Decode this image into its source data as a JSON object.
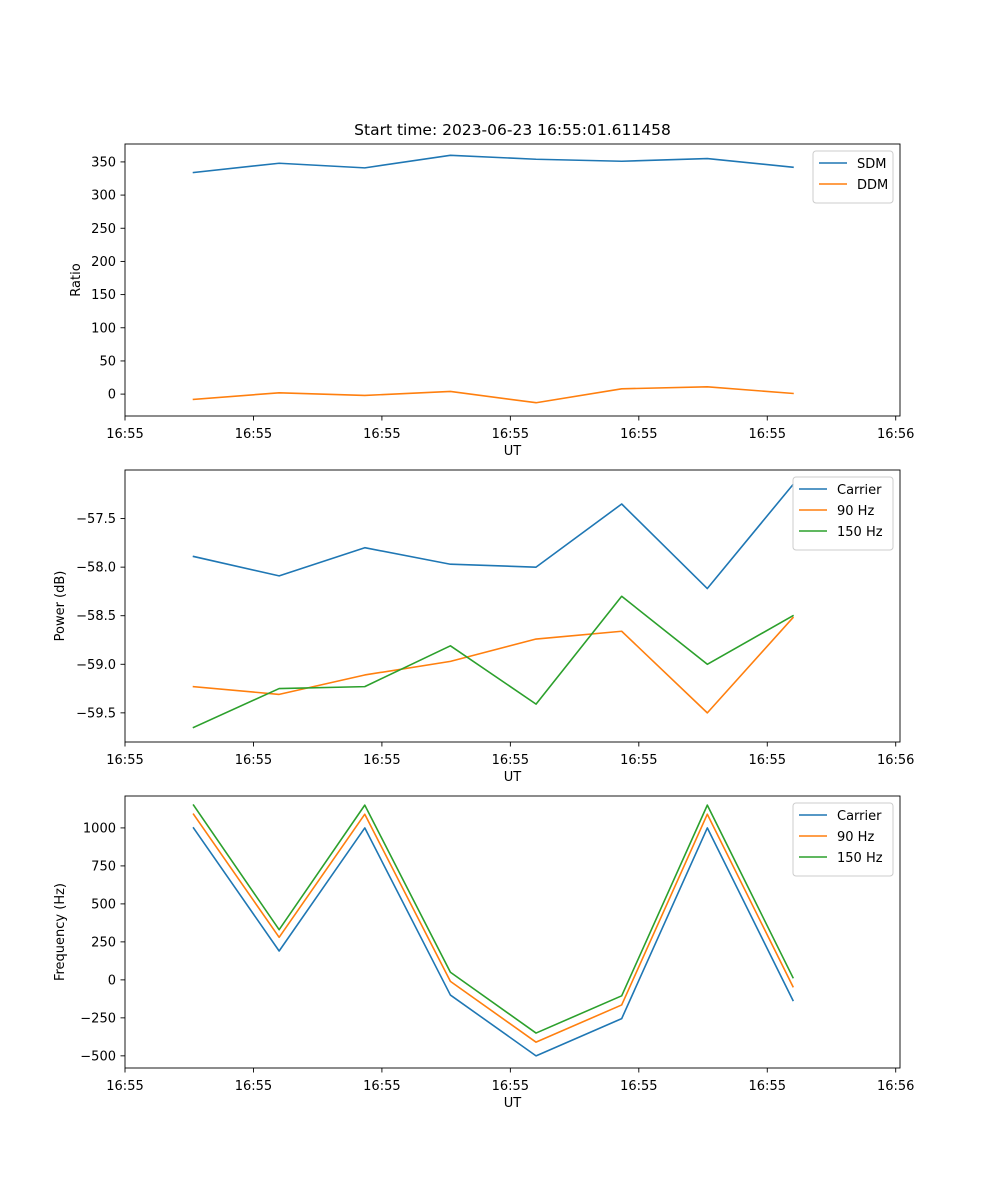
{
  "figure": {
    "title": "Start time: 2023-06-23 16:55:01.611458"
  },
  "colors": {
    "blue": "#1f77b4",
    "orange": "#ff7f0e",
    "green": "#2ca02c"
  },
  "chart_data": [
    {
      "type": "line",
      "title": "Start time: 2023-06-23 16:55:01.611458",
      "xlabel": "UT",
      "ylabel": "Ratio",
      "x": [
        1,
        2,
        3,
        4,
        5,
        6,
        7,
        8
      ],
      "xlim": [
        0.2,
        9.25
      ],
      "xticks": [
        0.2,
        1.7,
        3.2,
        4.7,
        6.2,
        7.7,
        9.2
      ],
      "xtick_labels": [
        "16:55",
        "16:55",
        "16:55",
        "16:55",
        "16:55",
        "16:55",
        "16:56"
      ],
      "ylim": [
        -33,
        377
      ],
      "yticks": [
        0,
        50,
        100,
        150,
        200,
        250,
        300,
        350
      ],
      "ytick_labels": [
        "0",
        "50",
        "100",
        "150",
        "200",
        "250",
        "300",
        "350"
      ],
      "legend": "top-right",
      "grid": false,
      "series": [
        {
          "name": "SDM",
          "color": "blue",
          "values": [
            334,
            348,
            341,
            360,
            354,
            351,
            355,
            342
          ]
        },
        {
          "name": "DDM",
          "color": "orange",
          "values": [
            -8,
            2,
            -2,
            4,
            -13,
            8,
            11,
            1
          ]
        }
      ]
    },
    {
      "type": "line",
      "xlabel": "UT",
      "ylabel": "Power (dB)",
      "x": [
        1,
        2,
        3,
        4,
        5,
        6,
        7,
        8
      ],
      "xlim": [
        0.2,
        9.25
      ],
      "xticks": [
        0.2,
        1.7,
        3.2,
        4.7,
        6.2,
        7.7,
        9.2
      ],
      "xtick_labels": [
        "16:55",
        "16:55",
        "16:55",
        "16:55",
        "16:55",
        "16:55",
        "16:56"
      ],
      "ylim": [
        -59.8,
        -57.0
      ],
      "yticks": [
        -59.5,
        -59.0,
        -58.5,
        -58.0,
        -57.5
      ],
      "ytick_labels": [
        "−59.5",
        "−59.0",
        "−58.5",
        "−58.0",
        "−57.5"
      ],
      "legend": "top-right",
      "grid": false,
      "series": [
        {
          "name": "Carrier",
          "color": "blue",
          "values": [
            -57.89,
            -58.09,
            -57.8,
            -57.97,
            -58.0,
            -57.35,
            -58.22,
            -57.15
          ]
        },
        {
          "name": "90 Hz",
          "color": "orange",
          "values": [
            -59.23,
            -59.31,
            -59.11,
            -58.97,
            -58.74,
            -58.66,
            -59.5,
            -58.52
          ]
        },
        {
          "name": "150 Hz",
          "color": "green",
          "values": [
            -59.65,
            -59.25,
            -59.23,
            -58.81,
            -59.41,
            -58.3,
            -59.0,
            -58.5
          ]
        }
      ]
    },
    {
      "type": "line",
      "xlabel": "UT",
      "ylabel": "Frequency (Hz)",
      "x": [
        1,
        2,
        3,
        4,
        5,
        6,
        7,
        8
      ],
      "xlim": [
        0.2,
        9.25
      ],
      "xticks": [
        0.2,
        1.7,
        3.2,
        4.7,
        6.2,
        7.7,
        9.2
      ],
      "xtick_labels": [
        "16:55",
        "16:55",
        "16:55",
        "16:55",
        "16:55",
        "16:55",
        "16:56"
      ],
      "ylim": [
        -580,
        1210
      ],
      "yticks": [
        -500,
        -250,
        0,
        250,
        500,
        750,
        1000
      ],
      "ytick_labels": [
        "−500",
        "−250",
        "0",
        "250",
        "500",
        "750",
        "1000"
      ],
      "legend": "top-right",
      "grid": false,
      "series": [
        {
          "name": "Carrier",
          "color": "blue",
          "values": [
            1000,
            190,
            1000,
            -100,
            -500,
            -255,
            1000,
            -135
          ]
        },
        {
          "name": "90 Hz",
          "color": "orange",
          "values": [
            1090,
            280,
            1090,
            -10,
            -410,
            -165,
            1090,
            -45
          ]
        },
        {
          "name": "150 Hz",
          "color": "green",
          "values": [
            1150,
            330,
            1150,
            50,
            -350,
            -105,
            1150,
            15
          ]
        }
      ]
    }
  ]
}
